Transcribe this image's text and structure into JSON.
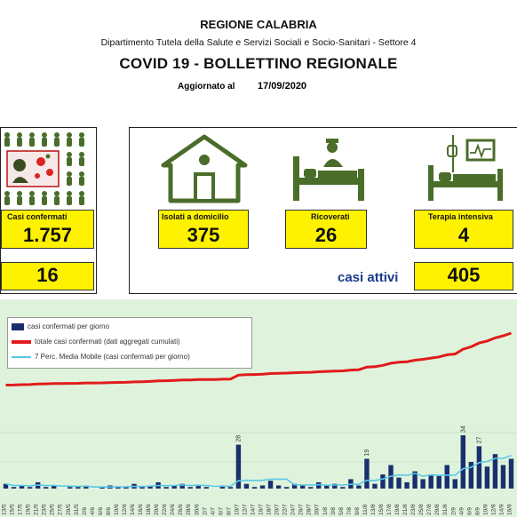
{
  "header": {
    "region": "REGIONE CALABRIA",
    "department": "Dipartimento Tutela della Salute e Servizi Sociali e Socio-Sanitari - Settore 4",
    "title": "COVID 19 - BOLLETTINO REGIONALE",
    "updated_label": "Aggiornato al",
    "updated_date": "17/09/2020"
  },
  "stats": {
    "confirmed": {
      "label": "Casi confermati",
      "value": "1.757",
      "icon": "virus-patient-icon"
    },
    "home_isolation": {
      "label": "Isolati a domicilio",
      "value": "375",
      "icon": "house-icon"
    },
    "hospitalized": {
      "label": "Ricoverati",
      "value": "26",
      "icon": "hospital-bed-icon"
    },
    "intensive_care": {
      "label": "Terapia intensiva",
      "value": "4",
      "icon": "icu-monitor-icon"
    },
    "second_value": "16",
    "active_label": "casi attivi",
    "active_value": "405"
  },
  "colors": {
    "yellow": "#fff200",
    "chart_bg": "#dff3dc",
    "daily_bar": "#1a2f6e",
    "cumulative_line": "#e11b1b",
    "moving_avg": "#5bc8e8"
  },
  "chart_data": {
    "type": "bar",
    "series": [
      {
        "name": "casi confermati per giorno",
        "kind": "bar"
      },
      {
        "name": "totale casi confermati (dati aggregati cumulati)",
        "kind": "line"
      },
      {
        "name": "7 Perc. Media Mobile (casi confermati per giorno)",
        "kind": "line"
      }
    ],
    "categories": [
      "13/5",
      "15/5",
      "17/5",
      "19/5",
      "21/5",
      "23/5",
      "25/5",
      "27/5",
      "29/5",
      "31/5",
      "2/6",
      "4/6",
      "6/6",
      "8/6",
      "10/6",
      "12/6",
      "14/6",
      "16/6",
      "18/6",
      "20/6",
      "22/6",
      "24/6",
      "26/6",
      "28/6",
      "30/6",
      "2/7",
      "4/7",
      "6/7",
      "8/7",
      "10/7",
      "12/7",
      "14/7",
      "16/7",
      "18/7",
      "20/7",
      "22/7",
      "24/7",
      "26/7",
      "28/7",
      "30/7",
      "1/8",
      "3/8",
      "5/8",
      "7/8",
      "9/8",
      "11/8",
      "13/8",
      "15/8",
      "17/8",
      "19/8",
      "21/8",
      "23/8",
      "25/8",
      "27/8",
      "29/8",
      "31/8",
      "2/9",
      "4/9",
      "6/9",
      "8/9",
      "10/9",
      "12/9",
      "14/9",
      "16/9"
    ],
    "daily_values": [
      3,
      1,
      2,
      1,
      4,
      1,
      2,
      0,
      1,
      1,
      2,
      0,
      1,
      2,
      1,
      1,
      3,
      1,
      2,
      4,
      1,
      2,
      3,
      1,
      2,
      1,
      0,
      2,
      1,
      28,
      3,
      1,
      2,
      5,
      2,
      1,
      3,
      2,
      1,
      4,
      2,
      3,
      1,
      6,
      2,
      19,
      3,
      9,
      15,
      7,
      4,
      11,
      6,
      9,
      8,
      15,
      6,
      34,
      17,
      27,
      14,
      22,
      15,
      19
    ],
    "data_labels": {
      "10/7": "28",
      "11/8": "19",
      "4/9": "34",
      "8/9": "27"
    },
    "cumulative_range": [
      1150,
      1757
    ]
  }
}
